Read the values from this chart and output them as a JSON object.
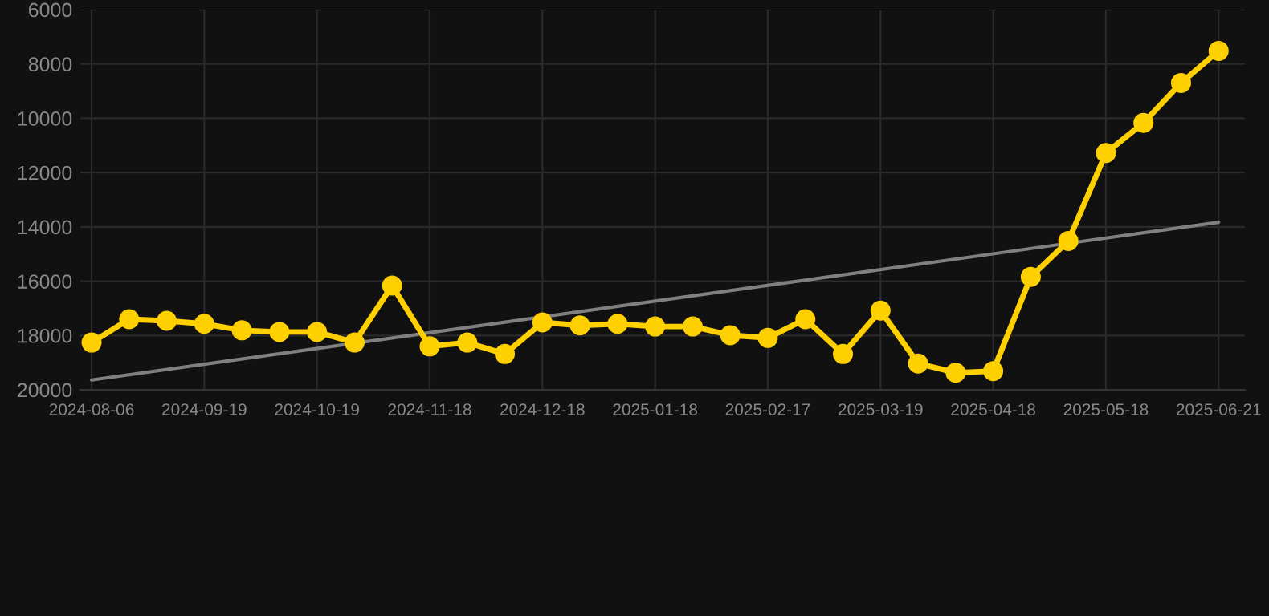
{
  "chart_data": {
    "type": "line",
    "categories": [
      "2024-08-06",
      null,
      null,
      "2024-09-19",
      null,
      null,
      "2024-10-19",
      null,
      null,
      "2024-11-18",
      null,
      null,
      "2024-12-18",
      null,
      null,
      "2025-01-18",
      null,
      null,
      "2025-02-17",
      null,
      null,
      "2025-03-19",
      null,
      null,
      "2025-04-18",
      null,
      null,
      "2025-05-18",
      null,
      null,
      "2025-06-21"
    ],
    "series": [
      {
        "color": "#ffd000",
        "marker": "circle",
        "values": [
          18260,
          17400,
          17460,
          17570,
          17810,
          17870,
          17870,
          18260,
          16160,
          18400,
          18260,
          18680,
          17520,
          17630,
          17570,
          17670,
          17670,
          17990,
          18090,
          17400,
          18680,
          17080,
          19030,
          19370,
          19310,
          15840,
          14520,
          11280,
          10170,
          8700,
          7520
        ]
      },
      {
        "color": "#808080",
        "marker": "none",
        "values": [
          19640,
          null,
          null,
          null,
          null,
          null,
          null,
          null,
          null,
          null,
          null,
          null,
          null,
          null,
          null,
          null,
          null,
          null,
          null,
          null,
          null,
          null,
          null,
          null,
          null,
          null,
          null,
          null,
          null,
          null,
          13830
        ]
      }
    ],
    "ylim": [
      20000,
      6000
    ],
    "yticks": [
      20000,
      18000,
      16000,
      14000,
      12000,
      10000,
      8000,
      6000
    ],
    "grid": true
  }
}
